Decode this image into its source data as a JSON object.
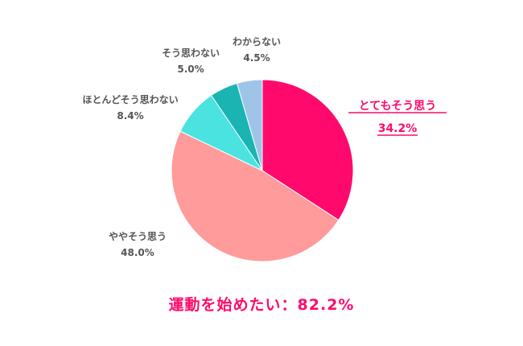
{
  "chart_data": {
    "type": "pie",
    "start_angle_deg": 0,
    "direction": "clockwise",
    "slices": [
      {
        "label": "とてもそう思う",
        "value": 34.2,
        "value_text": "34.2%",
        "color": "#ff0a6c",
        "highlight": true
      },
      {
        "label": "ややそう思う",
        "value": 48.0,
        "value_text": "48.0%",
        "color": "#ff9b9b",
        "highlight": false
      },
      {
        "label": "ほとんどそう思わない",
        "value": 8.4,
        "value_text": "8.4%",
        "color": "#4ae3e0",
        "highlight": false
      },
      {
        "label": "そう思わない",
        "value": 5.0,
        "value_text": "5.0%",
        "color": "#1ab4b2",
        "highlight": false
      },
      {
        "label": "わからない",
        "value": 4.5,
        "value_text": "4.5%",
        "color": "#9ec5e8",
        "highlight": false
      }
    ]
  },
  "summary": {
    "text": "運動を始めたい：82.2%",
    "color": "#ff0a6c"
  }
}
